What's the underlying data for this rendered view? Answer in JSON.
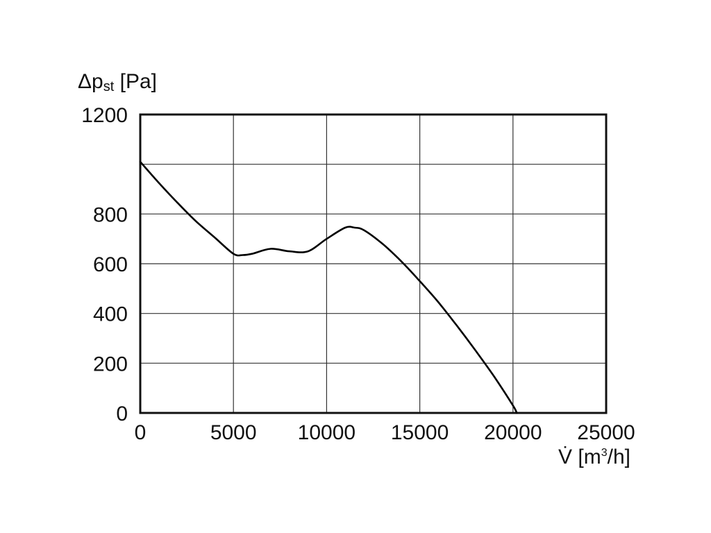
{
  "chart_data": {
    "type": "line",
    "ylabel_symbol": "Δp",
    "ylabel_subscript": "st",
    "ylabel_unit": " [Pa]",
    "xlabel_symbol": "V̇",
    "xlabel_unit_prefix": " [m",
    "xlabel_unit_sup": "3",
    "xlabel_unit_suffix": "/h]",
    "xlim": [
      0,
      25000
    ],
    "ylim": [
      0,
      1200
    ],
    "x_ticks": [
      0,
      5000,
      10000,
      15000,
      20000,
      25000
    ],
    "y_tick_labels": [
      {
        "value": 0,
        "label": "0"
      },
      {
        "value": 200,
        "label": "200"
      },
      {
        "value": 400,
        "label": "400"
      },
      {
        "value": 600,
        "label": "600"
      },
      {
        "value": 800,
        "label": "800"
      },
      {
        "value": 1200,
        "label": "1200"
      }
    ],
    "grid": true,
    "series": [
      {
        "color": "#000000",
        "x": [
          0,
          1000,
          2000,
          3000,
          4000,
          5000,
          5500,
          6000,
          7000,
          8000,
          9000,
          10000,
          11000,
          11500,
          12000,
          13000,
          14000,
          15000,
          16000,
          17000,
          18000,
          19000,
          20000,
          20200
        ],
        "y": [
          1010,
          925,
          845,
          770,
          705,
          640,
          635,
          640,
          660,
          650,
          650,
          700,
          745,
          745,
          735,
          680,
          610,
          530,
          445,
          350,
          250,
          145,
          30,
          0
        ]
      }
    ]
  }
}
